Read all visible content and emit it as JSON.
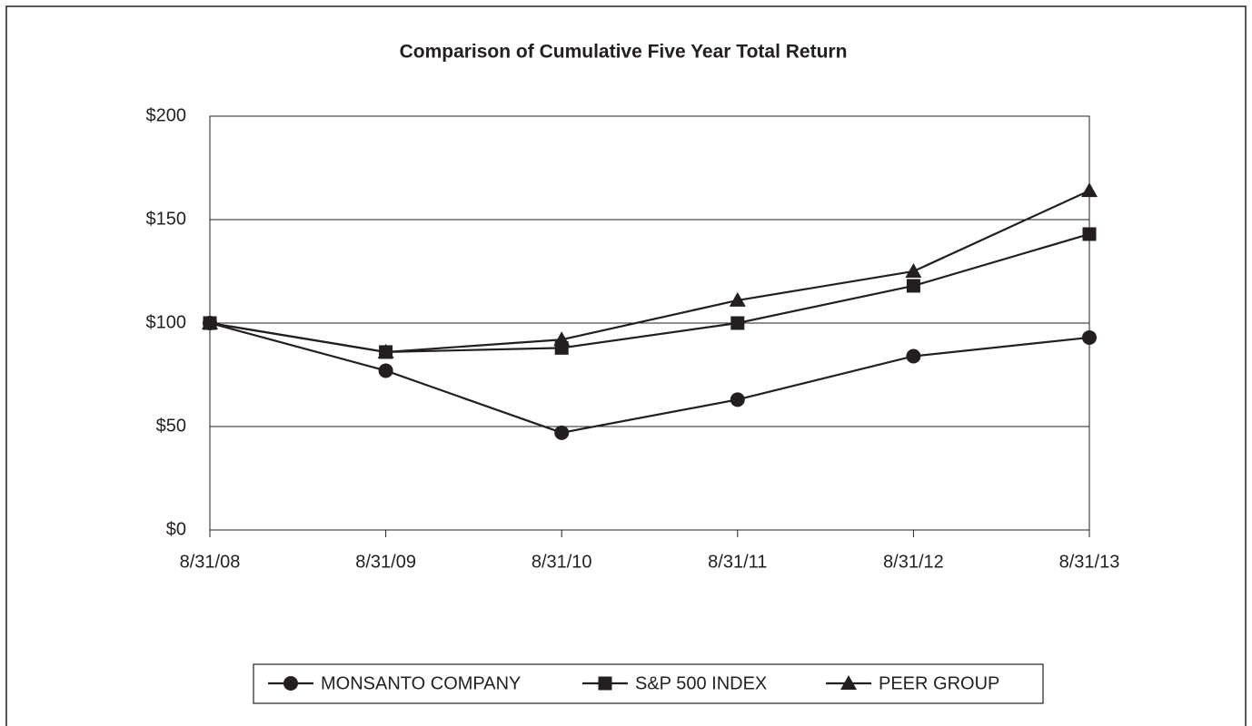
{
  "chart_data": {
    "type": "line",
    "title": "Comparison of Cumulative Five Year Total Return",
    "categories": [
      "8/31/08",
      "8/31/09",
      "8/31/10",
      "8/31/11",
      "8/31/12",
      "8/31/13"
    ],
    "series": [
      {
        "name": "MONSANTO COMPANY",
        "color": "#231f20",
        "marker": "circle",
        "values": [
          100,
          77,
          47,
          63,
          84,
          93
        ]
      },
      {
        "name": "S&P 500 INDEX",
        "color": "#231f20",
        "marker": "square",
        "values": [
          100,
          86,
          88,
          100,
          118,
          143
        ]
      },
      {
        "name": "PEER GROUP",
        "color": "#231f20",
        "marker": "triangle",
        "values": [
          100,
          86,
          92,
          111,
          125,
          164
        ]
      }
    ],
    "ylim": [
      0,
      200
    ],
    "yticks": [
      {
        "value": 0,
        "label": "$0"
      },
      {
        "value": 50,
        "label": "$50"
      },
      {
        "value": 100,
        "label": "$100"
      },
      {
        "value": 150,
        "label": "$150"
      },
      {
        "value": 200,
        "label": "$200"
      }
    ],
    "grid": true,
    "legend": "bottom"
  }
}
